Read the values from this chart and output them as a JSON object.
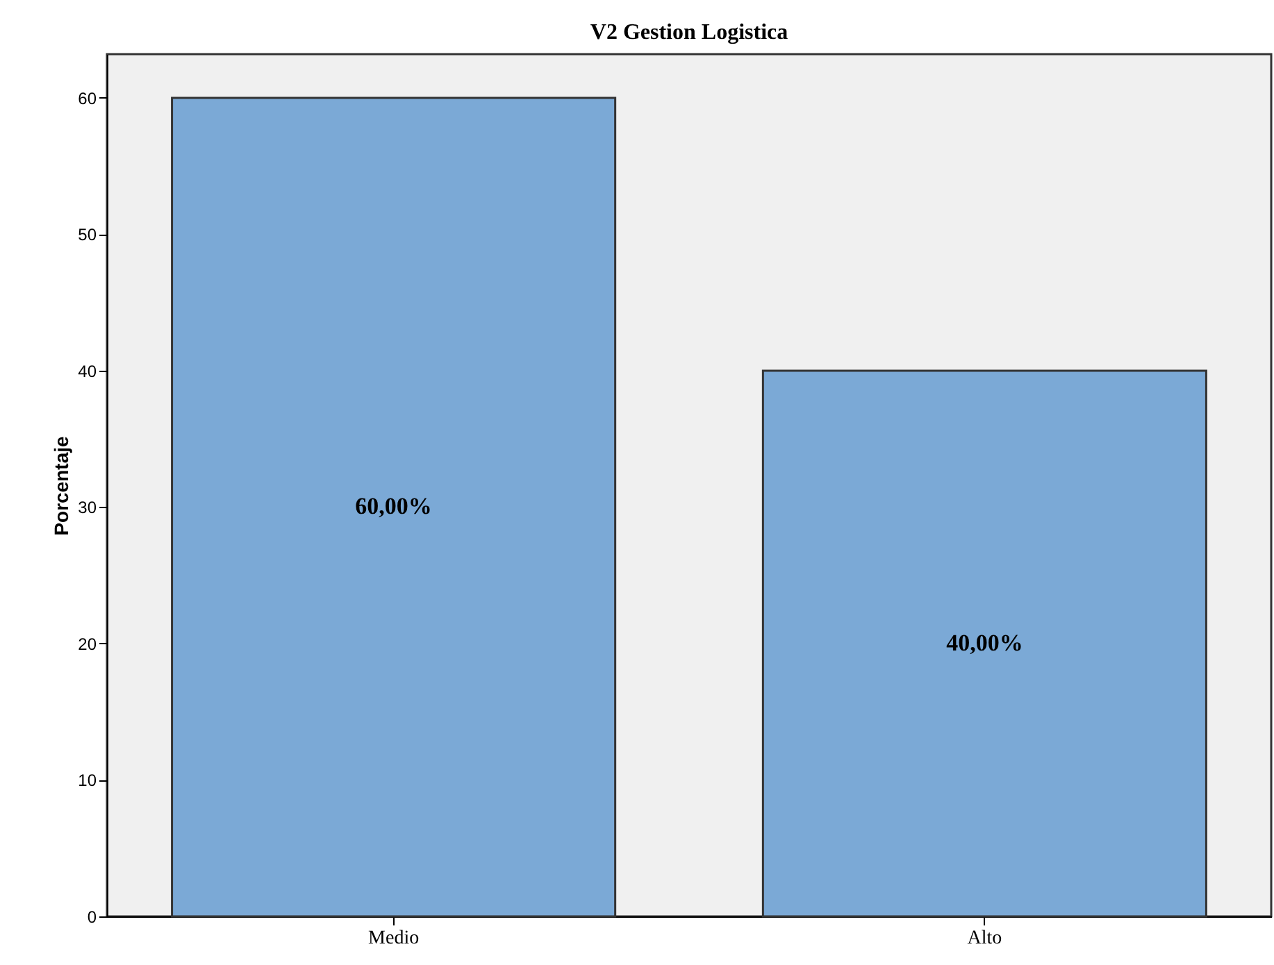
{
  "chart_data": {
    "type": "bar",
    "title": "V2 Gestion Logistica",
    "ylabel": "Porcentaje",
    "categories": [
      "Medio",
      "Alto"
    ],
    "values": [
      60,
      40
    ],
    "value_labels": [
      "60,00%",
      "40,00%"
    ],
    "color": "#7ba9d6",
    "ylim": [
      0,
      63.2
    ],
    "yticks": [
      0,
      10,
      20,
      30,
      40,
      50,
      60
    ],
    "grid": false
  }
}
